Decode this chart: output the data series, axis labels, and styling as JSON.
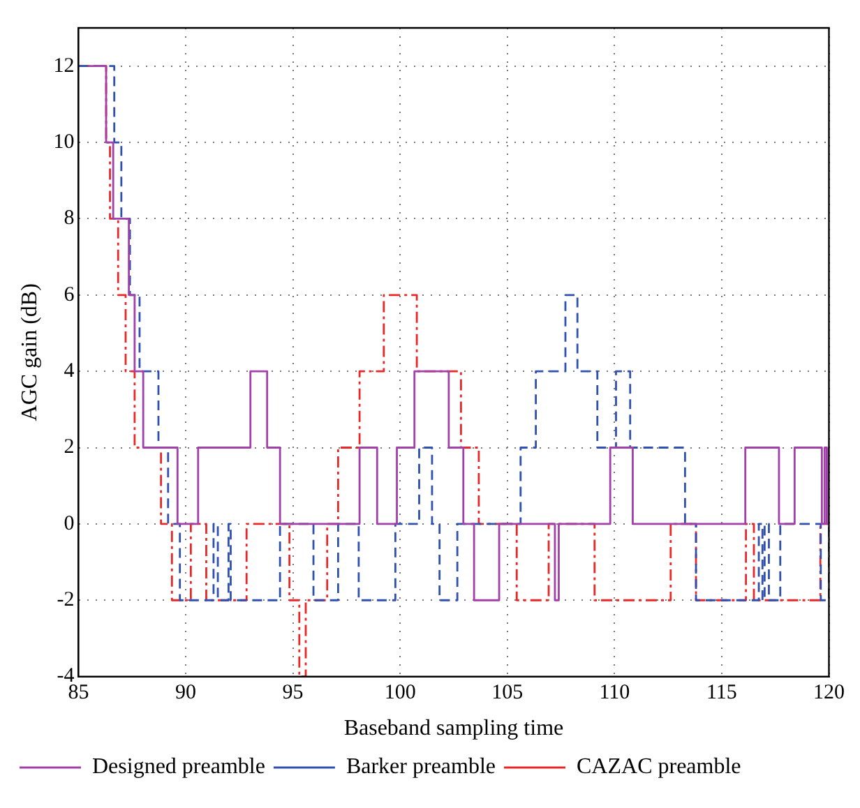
{
  "chart_data": {
    "type": "step",
    "xlabel": "Baseband sampling time",
    "ylabel": "AGC gain (dB)",
    "xlim": [
      85,
      120
    ],
    "ylim": [
      -4,
      13
    ],
    "xticks": [
      85,
      90,
      95,
      100,
      105,
      110,
      115,
      120
    ],
    "yticks": [
      -4,
      -2,
      0,
      2,
      4,
      6,
      8,
      10,
      12
    ],
    "grid": true,
    "legend": "bottom left",
    "marker": "none",
    "series": [
      {
        "name": "Designed preamble",
        "color": "#a040a8",
        "line_style": "solid",
        "x": [
          85.5,
          86.29,
          86.62,
          87.35,
          87.62,
          88.02,
          89.62,
          90.58,
          93.02,
          93.8,
          94.4,
          98.11,
          98.93,
          99.85,
          100.67,
          102.27,
          102.95,
          103.45,
          104.62,
          107.22,
          107.4,
          109.8,
          110.85,
          116.1,
          117.67,
          118.4,
          119.67,
          119.8,
          119.9,
          120
        ],
        "values": [
          12,
          10,
          8,
          6,
          4,
          2,
          0,
          2,
          4,
          2,
          0,
          2,
          0,
          2,
          4,
          2,
          0,
          -2,
          0,
          -2,
          0,
          2,
          0,
          2,
          0,
          2,
          0,
          2,
          0,
          2
        ]
      },
      {
        "name": "Barker preamble",
        "color": "#3050b0",
        "line_style": "dashed",
        "x": [
          85,
          86.67,
          87.0,
          87.4,
          87.85,
          88.73,
          89.18,
          89.73,
          91.3,
          91.5,
          92.0,
          92.1,
          94.4,
          95.96,
          97.11,
          98.07,
          99.78,
          100.89,
          101.49,
          101.84,
          102.67,
          105.62,
          106.33,
          107.71,
          108.27,
          109.2,
          110.07,
          110.73,
          113.29,
          113.8,
          116.73,
          116.9,
          117.0,
          117.2,
          117.73,
          119.62,
          120
        ],
        "values": [
          12,
          10,
          8,
          6,
          4,
          2,
          0,
          -2,
          0,
          -2,
          0,
          -2,
          0,
          -2,
          0,
          -2,
          0,
          2,
          0,
          -2,
          0,
          2,
          4,
          6,
          4,
          2,
          4,
          2,
          0,
          -2,
          0,
          -2,
          0,
          -2,
          0,
          -2,
          0
        ]
      },
      {
        "name": "CAZAC preamble",
        "color": "#e82828",
        "line_style": "dotted",
        "x": [
          85,
          86.29,
          86.47,
          86.85,
          87.2,
          87.62,
          88.85,
          89.36,
          90.24,
          90.96,
          92.84,
          94.84,
          95.3,
          95.6,
          96.6,
          97.11,
          98.11,
          99.24,
          100.78,
          102.84,
          103.67,
          105.44,
          106.93,
          109.07,
          112.62,
          113.8,
          116.13,
          116.5,
          119.6,
          120
        ],
        "values": [
          12,
          10,
          8,
          6,
          4,
          2,
          0,
          -2,
          0,
          -2,
          0,
          -2,
          -4,
          -2,
          0,
          2,
          4,
          6,
          4,
          2,
          0,
          -2,
          0,
          -2,
          0,
          -2,
          0,
          -2,
          0,
          0
        ]
      }
    ]
  }
}
